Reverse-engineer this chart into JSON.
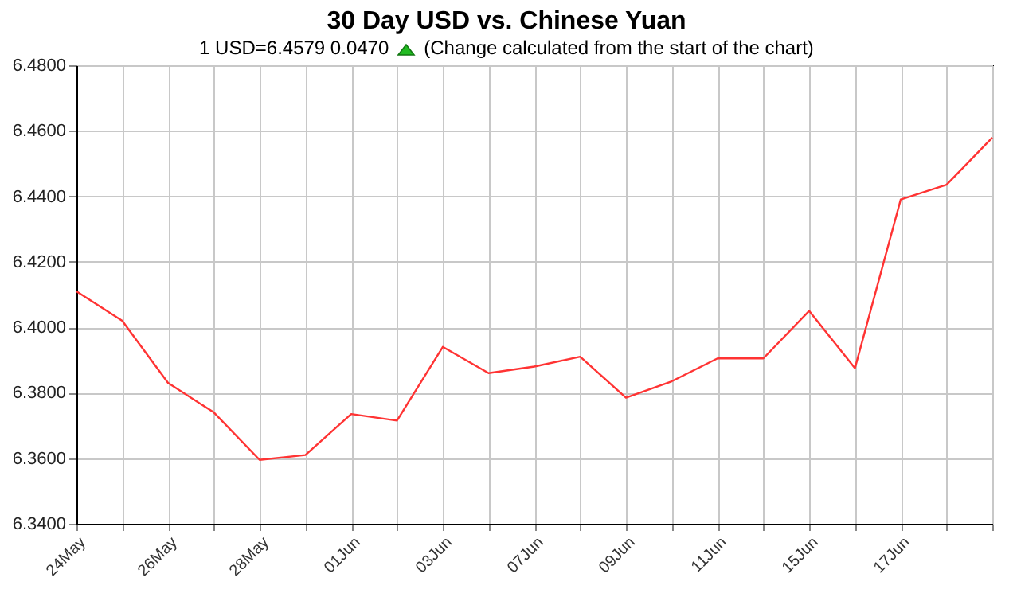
{
  "chart_data": {
    "type": "line",
    "title": "30 Day USD vs. Chinese Yuan",
    "subtitle": "1 USD=6.4579  0.0470",
    "annotations": [
      "(Change calculated from the start of the chart)"
    ],
    "categories": [
      "24May",
      null,
      "26May",
      null,
      "28May",
      null,
      "01Jun",
      null,
      "03Jun",
      null,
      "07Jun",
      null,
      "09Jun",
      null,
      "11Jun",
      null,
      "15Jun",
      null,
      "17Jun",
      null,
      null
    ],
    "series": [
      {
        "color": "#ff3333",
        "values": [
          6.411,
          6.402,
          6.383,
          6.374,
          6.3595,
          6.361,
          6.3735,
          6.3715,
          6.394,
          6.386,
          6.388,
          6.391,
          6.3785,
          6.3835,
          6.3905,
          6.3905,
          6.405,
          6.3875,
          6.439,
          6.4435,
          6.4579
        ]
      }
    ],
    "ylim": [
      6.34,
      6.48
    ],
    "yticks": [
      {
        "value": 6.34,
        "label": "6.3400"
      },
      {
        "value": 6.36,
        "label": "6.3600"
      },
      {
        "value": 6.38,
        "label": "6.3800"
      },
      {
        "value": 6.4,
        "label": "6.4000"
      },
      {
        "value": 6.42,
        "label": "6.4200"
      },
      {
        "value": 6.44,
        "label": "6.4400"
      },
      {
        "value": 6.46,
        "label": "6.4600"
      },
      {
        "value": 6.48,
        "label": "6.4800"
      }
    ],
    "grid": true,
    "marker": "none",
    "line_style": "solid"
  }
}
